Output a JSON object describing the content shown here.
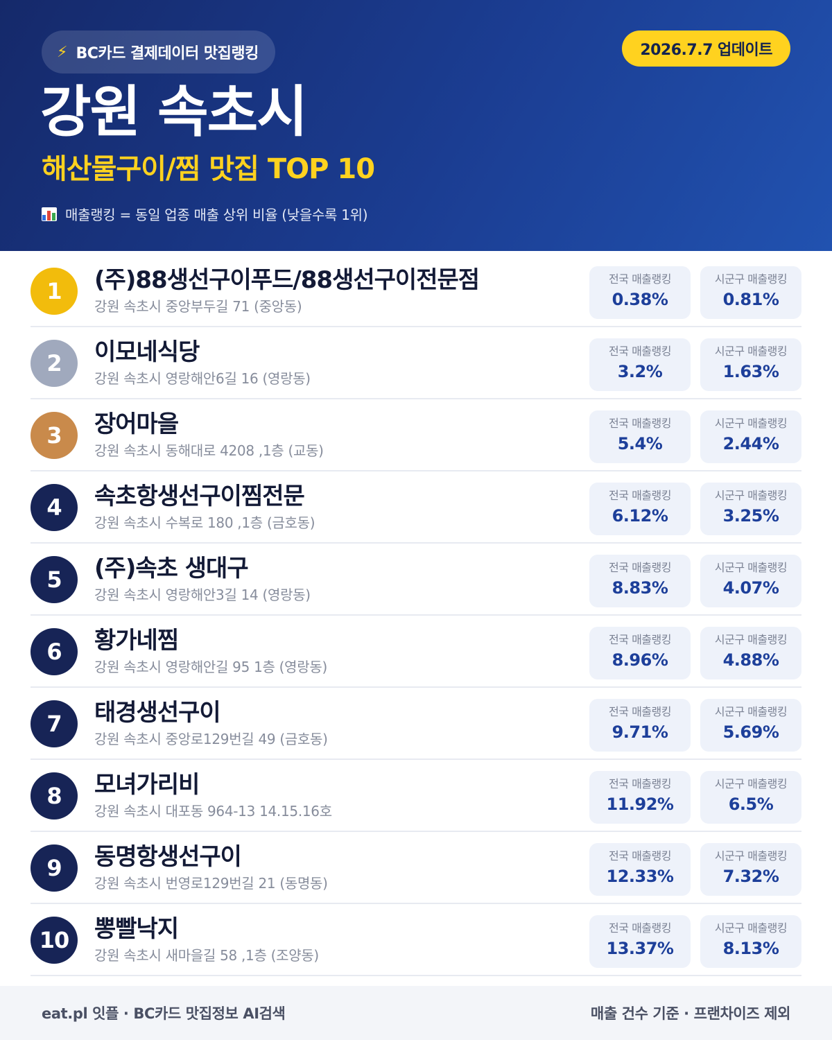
{
  "header": {
    "brand_label": "BC카드 결제데이터 맛집랭킹",
    "brand_icon": "lightning-icon",
    "update_label": "2026.7.7 업데이트",
    "city": "강원 속초시",
    "subtitle": "해산물구이/찜 맛집 TOP 10",
    "legend_icon": "bar-chart-icon",
    "legend": "매출랭킹 = 동일 업종 매출 상위 비율 (낮을수록 1위)"
  },
  "colors": {
    "gold": "#f2bc0c",
    "silver": "#a0a9bd",
    "bronze": "#c98a4b",
    "navy": "#172456",
    "accent_yellow": "#ffd21f",
    "stat_value": "#1d3f9a"
  },
  "labels": {
    "national": "전국 매출랭킹",
    "local": "시군구 매출랭킹"
  },
  "items": [
    {
      "rank": "1",
      "name": "(주)88생선구이푸드/88생선구이전문점",
      "address": "강원 속초시 중앙부두길 71 (중앙동)",
      "national": "0.38%",
      "local": "0.81%"
    },
    {
      "rank": "2",
      "name": "이모네식당",
      "address": "강원 속초시 영랑해안6길 16 (영랑동)",
      "national": "3.2%",
      "local": "1.63%"
    },
    {
      "rank": "3",
      "name": "장어마을",
      "address": "강원 속초시 동해대로 4208 ,1층 (교동)",
      "national": "5.4%",
      "local": "2.44%"
    },
    {
      "rank": "4",
      "name": "속초항생선구이찜전문",
      "address": "강원 속초시 수복로 180 ,1층 (금호동)",
      "national": "6.12%",
      "local": "3.25%"
    },
    {
      "rank": "5",
      "name": "(주)속초 생대구",
      "address": "강원 속초시 영랑해안3길 14 (영랑동)",
      "national": "8.83%",
      "local": "4.07%"
    },
    {
      "rank": "6",
      "name": "황가네찜",
      "address": "강원 속초시 영랑해안길 95 1층 (영랑동)",
      "national": "8.96%",
      "local": "4.88%"
    },
    {
      "rank": "7",
      "name": "태경생선구이",
      "address": "강원 속초시 중앙로129번길 49 (금호동)",
      "national": "9.71%",
      "local": "5.69%"
    },
    {
      "rank": "8",
      "name": "모녀가리비",
      "address": "강원 속초시 대포동 964-13 14.15.16호",
      "national": "11.92%",
      "local": "6.5%"
    },
    {
      "rank": "9",
      "name": "동명항생선구이",
      "address": "강원 속초시 번영로129번길 21 (동명동)",
      "national": "12.33%",
      "local": "7.32%"
    },
    {
      "rank": "10",
      "name": "뽕빨낙지",
      "address": "강원 속초시 새마을길 58 ,1층 (조양동)",
      "national": "13.37%",
      "local": "8.13%"
    }
  ],
  "footer": {
    "left": "eat.pl 잇플 · BC카드 맛집정보 AI검색",
    "right": "매출 건수 기준 · 프랜차이즈 제외"
  }
}
